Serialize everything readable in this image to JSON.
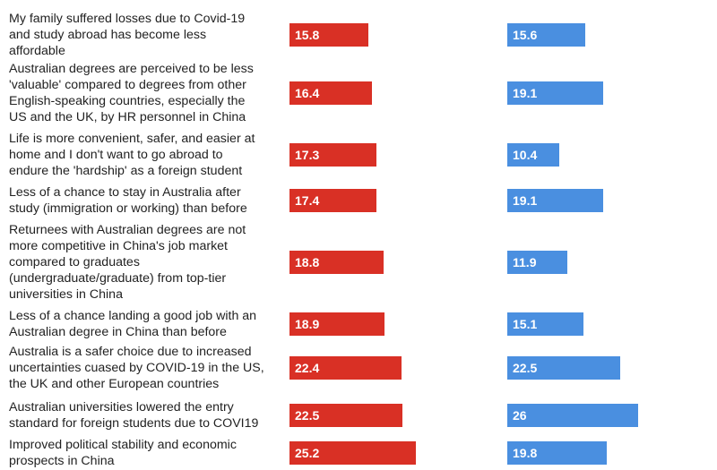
{
  "chart_data": {
    "type": "bar",
    "orientation": "horizontal",
    "categories": [
      "My family suffered losses due to Covid-19 and study abroad has become less affordable",
      "Australian degrees are perceived to be less 'valuable' compared to degrees from other English-speaking countries, especially the US and the UK, by HR personnel in China",
      "Life is more convenient, safer, and easier at home and I don't want to go abroad to endure the 'hardship' as a foreign student",
      "Less of a chance to stay in Australia after study (immigration or working) than before",
      "Returnees with Australian degrees are not more competitive in China's job market compared to graduates (undergraduate/graduate) from top-tier universities in China",
      "Less of a chance  landing a good job with an Australian degree in China than before",
      "Australia is a safer choice due to increased uncertainties cuased by COVID-19 in the US, the UK and other European countries",
      "Australian universities lowered the entry standard for foreign students due to COVI19",
      "Improved political stability and economic prospects in China"
    ],
    "label_lines": [
      [
        "My family suffered losses due to Covid-19",
        "and study abroad has become less",
        "affordable"
      ],
      [
        "Australian degrees are perceived to be less",
        "'valuable' compared to degrees from other",
        "English-speaking countries, especially the",
        "US and the UK, by HR personnel in China"
      ],
      [
        "Life is more convenient, safer, and easier at",
        "home and I don't want to go abroad to",
        "endure the 'hardship' as a foreign student"
      ],
      [
        "Less of a chance to stay in Australia after",
        "study (immigration or working) than before"
      ],
      [
        "Returnees with Australian degrees are not",
        "more competitive in China's job market",
        "compared to graduates",
        "(undergraduate/graduate) from top-tier",
        "universities in China"
      ],
      [
        "Less of a chance  landing a good job with an",
        "Australian degree in China than before"
      ],
      [
        "Australia is a safer choice due to increased",
        "uncertainties cuased by COVID-19 in the US,",
        "the UK and other European countries"
      ],
      [
        "Australian universities lowered the entry",
        "standard for foreign students due to COVI19"
      ],
      [
        "Improved political stability and economic",
        "prospects in China"
      ]
    ],
    "series": [
      {
        "color": "#d93025",
        "values": [
          15.8,
          16.4,
          17.3,
          17.4,
          18.8,
          18.9,
          22.4,
          22.5,
          25.2
        ]
      },
      {
        "color": "#4a8fe0",
        "values": [
          15.6,
          19.1,
          10.4,
          19.1,
          11.9,
          15.1,
          22.5,
          26,
          19.8
        ]
      }
    ],
    "title": "",
    "xlabel": "",
    "ylabel": "",
    "xlim": [
      0,
      26
    ],
    "grid": false,
    "legend": "none"
  }
}
